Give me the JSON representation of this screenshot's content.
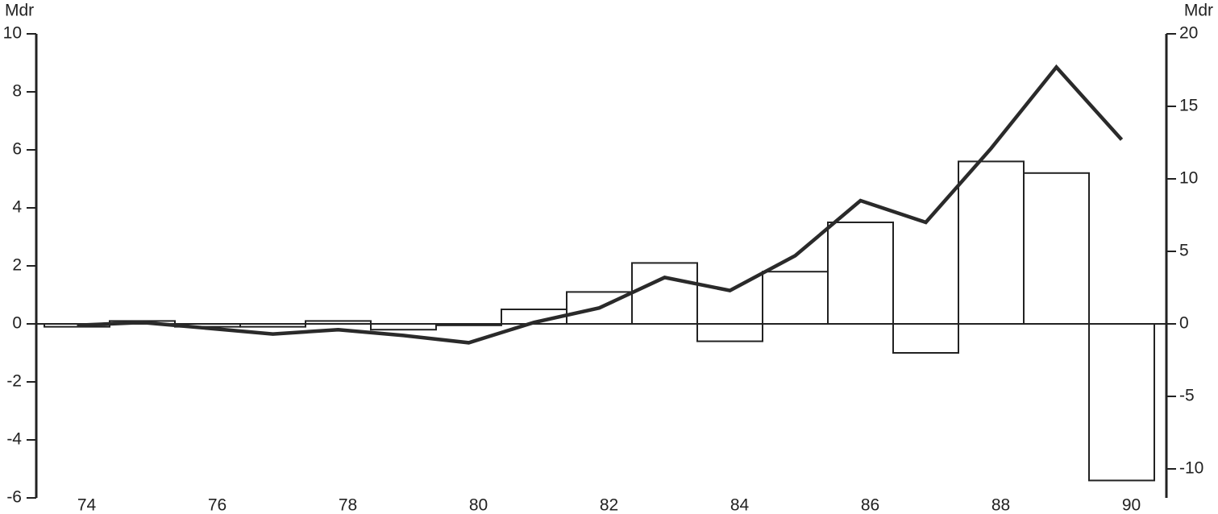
{
  "chart_data": {
    "type": "bar_line",
    "y_label": "Mdr",
    "y2_label": "Mdr",
    "categories": [
      "74",
      null,
      "76",
      null,
      "78",
      null,
      "80",
      null,
      "82",
      null,
      "84",
      null,
      "86",
      null,
      "88",
      null,
      "90"
    ],
    "series": [
      {
        "type": "bar",
        "color": "#ffffff",
        "values": [
          -0.1,
          0.1,
          -0.1,
          -0.1,
          0.1,
          -0.2,
          -0.05,
          0.5,
          1.1,
          2.1,
          -0.6,
          1.8,
          3.5,
          -1.0,
          5.6,
          5.2,
          -5.4
        ]
      },
      {
        "type": "line",
        "axis": "y2",
        "color": "#2a2a2a",
        "values": [
          -0.1,
          0.1,
          -0.3,
          -0.7,
          -0.4,
          -0.8,
          -1.3,
          0.1,
          1.1,
          3.2,
          2.3,
          4.7,
          8.5,
          7.0,
          12.1,
          17.7,
          12.7
        ]
      }
    ],
    "ylim": [
      -6,
      10
    ],
    "yticks": [
      -6,
      -4,
      -2,
      0,
      2,
      4,
      6,
      8,
      10
    ],
    "y2lim": [
      -12,
      20
    ],
    "y2ticks": [
      -10,
      -5,
      0,
      5,
      10,
      15,
      20
    ]
  }
}
